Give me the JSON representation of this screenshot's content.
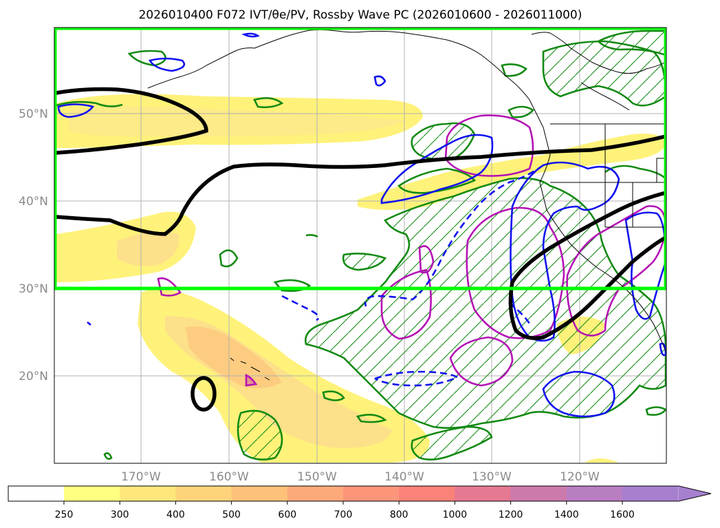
{
  "title": "2026010400 F072 IVT/θe/PV, Rossby Wave PC (2026010600 - 2026011000)",
  "map": {
    "lat_labels": [
      "50°N",
      "40°N",
      "30°N",
      "20°N"
    ],
    "lon_labels": [
      "170°W",
      "160°W",
      "150°W",
      "140°W",
      "130°W",
      "120°W"
    ],
    "box_color": "#00ff00",
    "contour_colors": {
      "green": "#138a13",
      "blue": "#1010f0",
      "magenta": "#b412b4",
      "black": "#000000"
    }
  },
  "colorbar": {
    "labels": [
      "250",
      "300",
      "400",
      "500",
      "600",
      "700",
      "800",
      "1000",
      "1200",
      "1400",
      "1600"
    ],
    "colors": [
      "#ffff80",
      "#fee77a",
      "#fdd47a",
      "#fdc17a",
      "#fda97a",
      "#fc957a",
      "#fb8279",
      "#e57992",
      "#cc7aab",
      "#b97dc2",
      "#a77fcf"
    ]
  }
}
